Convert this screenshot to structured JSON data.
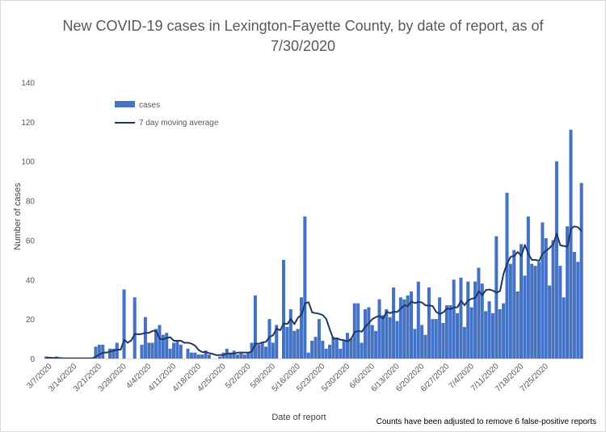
{
  "footnote": "Counts have been adjusted to remove 6 false-positive reports",
  "chart_data": {
    "type": "bar",
    "title": "New COVID-19 cases in Lexington-Fayette County, by date of report, as of 7/30/2020",
    "xlabel": "Date of report",
    "ylabel": "Number of cases",
    "ylim": [
      0,
      140
    ],
    "yticks": [
      0,
      20,
      40,
      60,
      80,
      100,
      120,
      140
    ],
    "grid": false,
    "legend_position": "top-left",
    "x_tick_labels": [
      "3/7/2020",
      "3/14/2020",
      "3/21/2020",
      "3/28/2020",
      "4/4/2020",
      "4/11/2020",
      "4/18/2020",
      "4/25/2020",
      "5/2/2020",
      "5/9/2020",
      "5/16/2020",
      "5/23/2020",
      "5/30/2020",
      "6/6/2020",
      "6/13/2020",
      "6/20/2020",
      "6/27/2020",
      "7/4/2020",
      "7/11/2020",
      "7/18/2020",
      "7/25/2020"
    ],
    "start_date": "3/6/2020",
    "end_date": "7/30/2020",
    "bar_color": "#4472c4",
    "line_color": "#203864",
    "series": [
      {
        "name": "cases",
        "type": "bar",
        "values": [
          1,
          0,
          0,
          1,
          0,
          0,
          0,
          0,
          0,
          0,
          0,
          0,
          0,
          0,
          6,
          7,
          7,
          0,
          5,
          5,
          8,
          0,
          35,
          0,
          0,
          31,
          0,
          7,
          21,
          8,
          8,
          15,
          17,
          12,
          13,
          5,
          8,
          9,
          7,
          0,
          5,
          3,
          3,
          2,
          2,
          4,
          2,
          0,
          0,
          1,
          3,
          5,
          3,
          4,
          2,
          3,
          2,
          3,
          8,
          32,
          7,
          8,
          6,
          20,
          8,
          17,
          0,
          50,
          16,
          25,
          14,
          15,
          31,
          72,
          3,
          9,
          11,
          20,
          9,
          5,
          7,
          11,
          10,
          5,
          9,
          13,
          10,
          28,
          28,
          8,
          25,
          26,
          17,
          14,
          30,
          22,
          25,
          21,
          36,
          19,
          31,
          30,
          32,
          34,
          15,
          39,
          17,
          12,
          36,
          20,
          20,
          31,
          18,
          27,
          27,
          40,
          23,
          41,
          16,
          39,
          26,
          39,
          46,
          38,
          24,
          29,
          23,
          62,
          25,
          28,
          84,
          48,
          55,
          34,
          58,
          42,
          72,
          48,
          47,
          49,
          69,
          61,
          37,
          60,
          100,
          47,
          31,
          67,
          116,
          54,
          49,
          89
        ]
      },
      {
        "name": "7 day moving average",
        "type": "line",
        "values": [
          0.5,
          0.4,
          0.3,
          0.3,
          0.2,
          0.1,
          0.1,
          0.1,
          0.1,
          0.1,
          0.1,
          0.1,
          0.1,
          0.1,
          0.9,
          2,
          3,
          3,
          3.5,
          4,
          4.5,
          4.5,
          9.5,
          8,
          9.2,
          12.5,
          12.3,
          12.5,
          13,
          13,
          14,
          14,
          10,
          9.7,
          10.5,
          10.8,
          9,
          9,
          9,
          8,
          8,
          7.5,
          6.5,
          4.3,
          3.3,
          3.3,
          2.7,
          2.3,
          1.7,
          1.8,
          1.8,
          2.5,
          2.5,
          2.5,
          3,
          3,
          3,
          3,
          3.5,
          7.5,
          7.5,
          8.2,
          8.5,
          11,
          11.8,
          15.2,
          14.3,
          17.8,
          17.5,
          20,
          17.4,
          20.7,
          22.2,
          28.1,
          28.5,
          23.4,
          23,
          22.7,
          22,
          20,
          14.6,
          9.9,
          10.3,
          9.5,
          9.3,
          8.6,
          10,
          13.5,
          13.9,
          13.6,
          16.1,
          18,
          20,
          21,
          21.6,
          20.2,
          23.7,
          23,
          23.7,
          23.6,
          25.3,
          27,
          26.6,
          28.9,
          28.1,
          28.7,
          28.4,
          26.9,
          26.9,
          26.6,
          23.6,
          22.6,
          23.4,
          25.3,
          25,
          25.9,
          26,
          29.3,
          27,
          29.5,
          30.3,
          30.7,
          34.1,
          32.1,
          34.7,
          35,
          34.4,
          33.4,
          34.2,
          43.1,
          48.1,
          51.6,
          52,
          54,
          52,
          57.6,
          53,
          50,
          50,
          49.5,
          53.1,
          54.6,
          56.1,
          58,
          63.3,
          57.4,
          57,
          56.7,
          65.9,
          67,
          66.5,
          64.5
        ]
      }
    ]
  }
}
